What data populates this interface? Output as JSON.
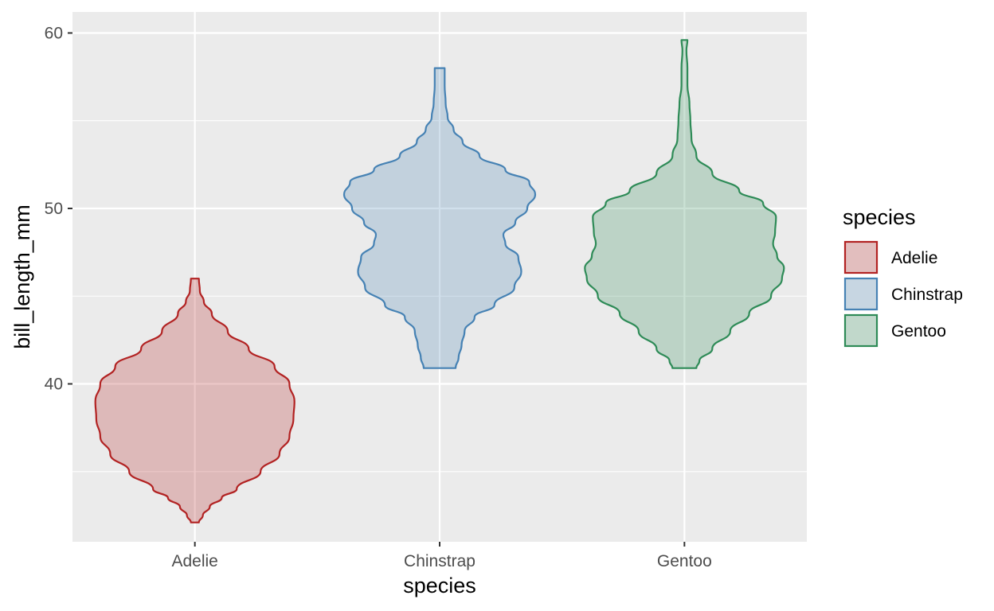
{
  "chart_data": {
    "type": "violin",
    "xlabel": "species",
    "ylabel": "bill_length_mm",
    "ylim": [
      31,
      61.2
    ],
    "y_ticks": [
      40,
      50,
      60
    ],
    "y_minor_ticks": [
      35,
      45,
      55
    ],
    "categories": [
      "Adelie",
      "Chinstrap",
      "Gentoo"
    ],
    "grid": true,
    "legend": {
      "title": "species",
      "position": "right"
    },
    "series": [
      {
        "name": "Adelie",
        "color": "#B22222",
        "min": 32.1,
        "max": 46.0,
        "profile": [
          [
            32.1,
            0.04
          ],
          [
            32.5,
            0.08
          ],
          [
            33.0,
            0.15
          ],
          [
            33.5,
            0.27
          ],
          [
            34.0,
            0.42
          ],
          [
            35.0,
            0.66
          ],
          [
            36.0,
            0.85
          ],
          [
            37.0,
            0.95
          ],
          [
            38.0,
            0.99
          ],
          [
            39.0,
            1.0
          ],
          [
            40.0,
            0.95
          ],
          [
            41.0,
            0.8
          ],
          [
            42.0,
            0.54
          ],
          [
            43.0,
            0.33
          ],
          [
            44.0,
            0.17
          ],
          [
            44.7,
            0.09
          ],
          [
            45.3,
            0.05
          ],
          [
            46.0,
            0.04
          ]
        ]
      },
      {
        "name": "Chinstrap",
        "color": "#4682B4",
        "min": 40.9,
        "max": 58.0,
        "profile": [
          [
            40.9,
            0.16
          ],
          [
            41.5,
            0.19
          ],
          [
            42.2,
            0.22
          ],
          [
            43.0,
            0.25
          ],
          [
            43.8,
            0.35
          ],
          [
            44.5,
            0.55
          ],
          [
            45.5,
            0.75
          ],
          [
            46.4,
            0.82
          ],
          [
            47.2,
            0.79
          ],
          [
            48.0,
            0.66
          ],
          [
            48.5,
            0.64
          ],
          [
            49.2,
            0.76
          ],
          [
            50.0,
            0.88
          ],
          [
            50.8,
            0.96
          ],
          [
            51.5,
            0.9
          ],
          [
            52.2,
            0.66
          ],
          [
            53.0,
            0.4
          ],
          [
            53.8,
            0.23
          ],
          [
            54.5,
            0.14
          ],
          [
            55.2,
            0.08
          ],
          [
            56.0,
            0.06
          ],
          [
            57.0,
            0.05
          ],
          [
            58.0,
            0.05
          ]
        ]
      },
      {
        "name": "Gentoo",
        "color": "#2E8B57",
        "min": 40.9,
        "max": 59.6,
        "profile": [
          [
            40.9,
            0.12
          ],
          [
            41.3,
            0.15
          ],
          [
            42.0,
            0.28
          ],
          [
            43.0,
            0.46
          ],
          [
            44.0,
            0.65
          ],
          [
            45.0,
            0.87
          ],
          [
            46.0,
            0.98
          ],
          [
            46.6,
            1.0
          ],
          [
            47.3,
            0.93
          ],
          [
            48.0,
            0.89
          ],
          [
            48.6,
            0.91
          ],
          [
            49.5,
            0.92
          ],
          [
            50.3,
            0.79
          ],
          [
            51.0,
            0.55
          ],
          [
            52.0,
            0.28
          ],
          [
            53.0,
            0.12
          ],
          [
            54.0,
            0.07
          ],
          [
            55.0,
            0.06
          ],
          [
            56.0,
            0.05
          ],
          [
            57.0,
            0.03
          ],
          [
            58.0,
            0.03
          ],
          [
            59.0,
            0.02
          ],
          [
            59.6,
            0.03
          ]
        ]
      }
    ]
  }
}
